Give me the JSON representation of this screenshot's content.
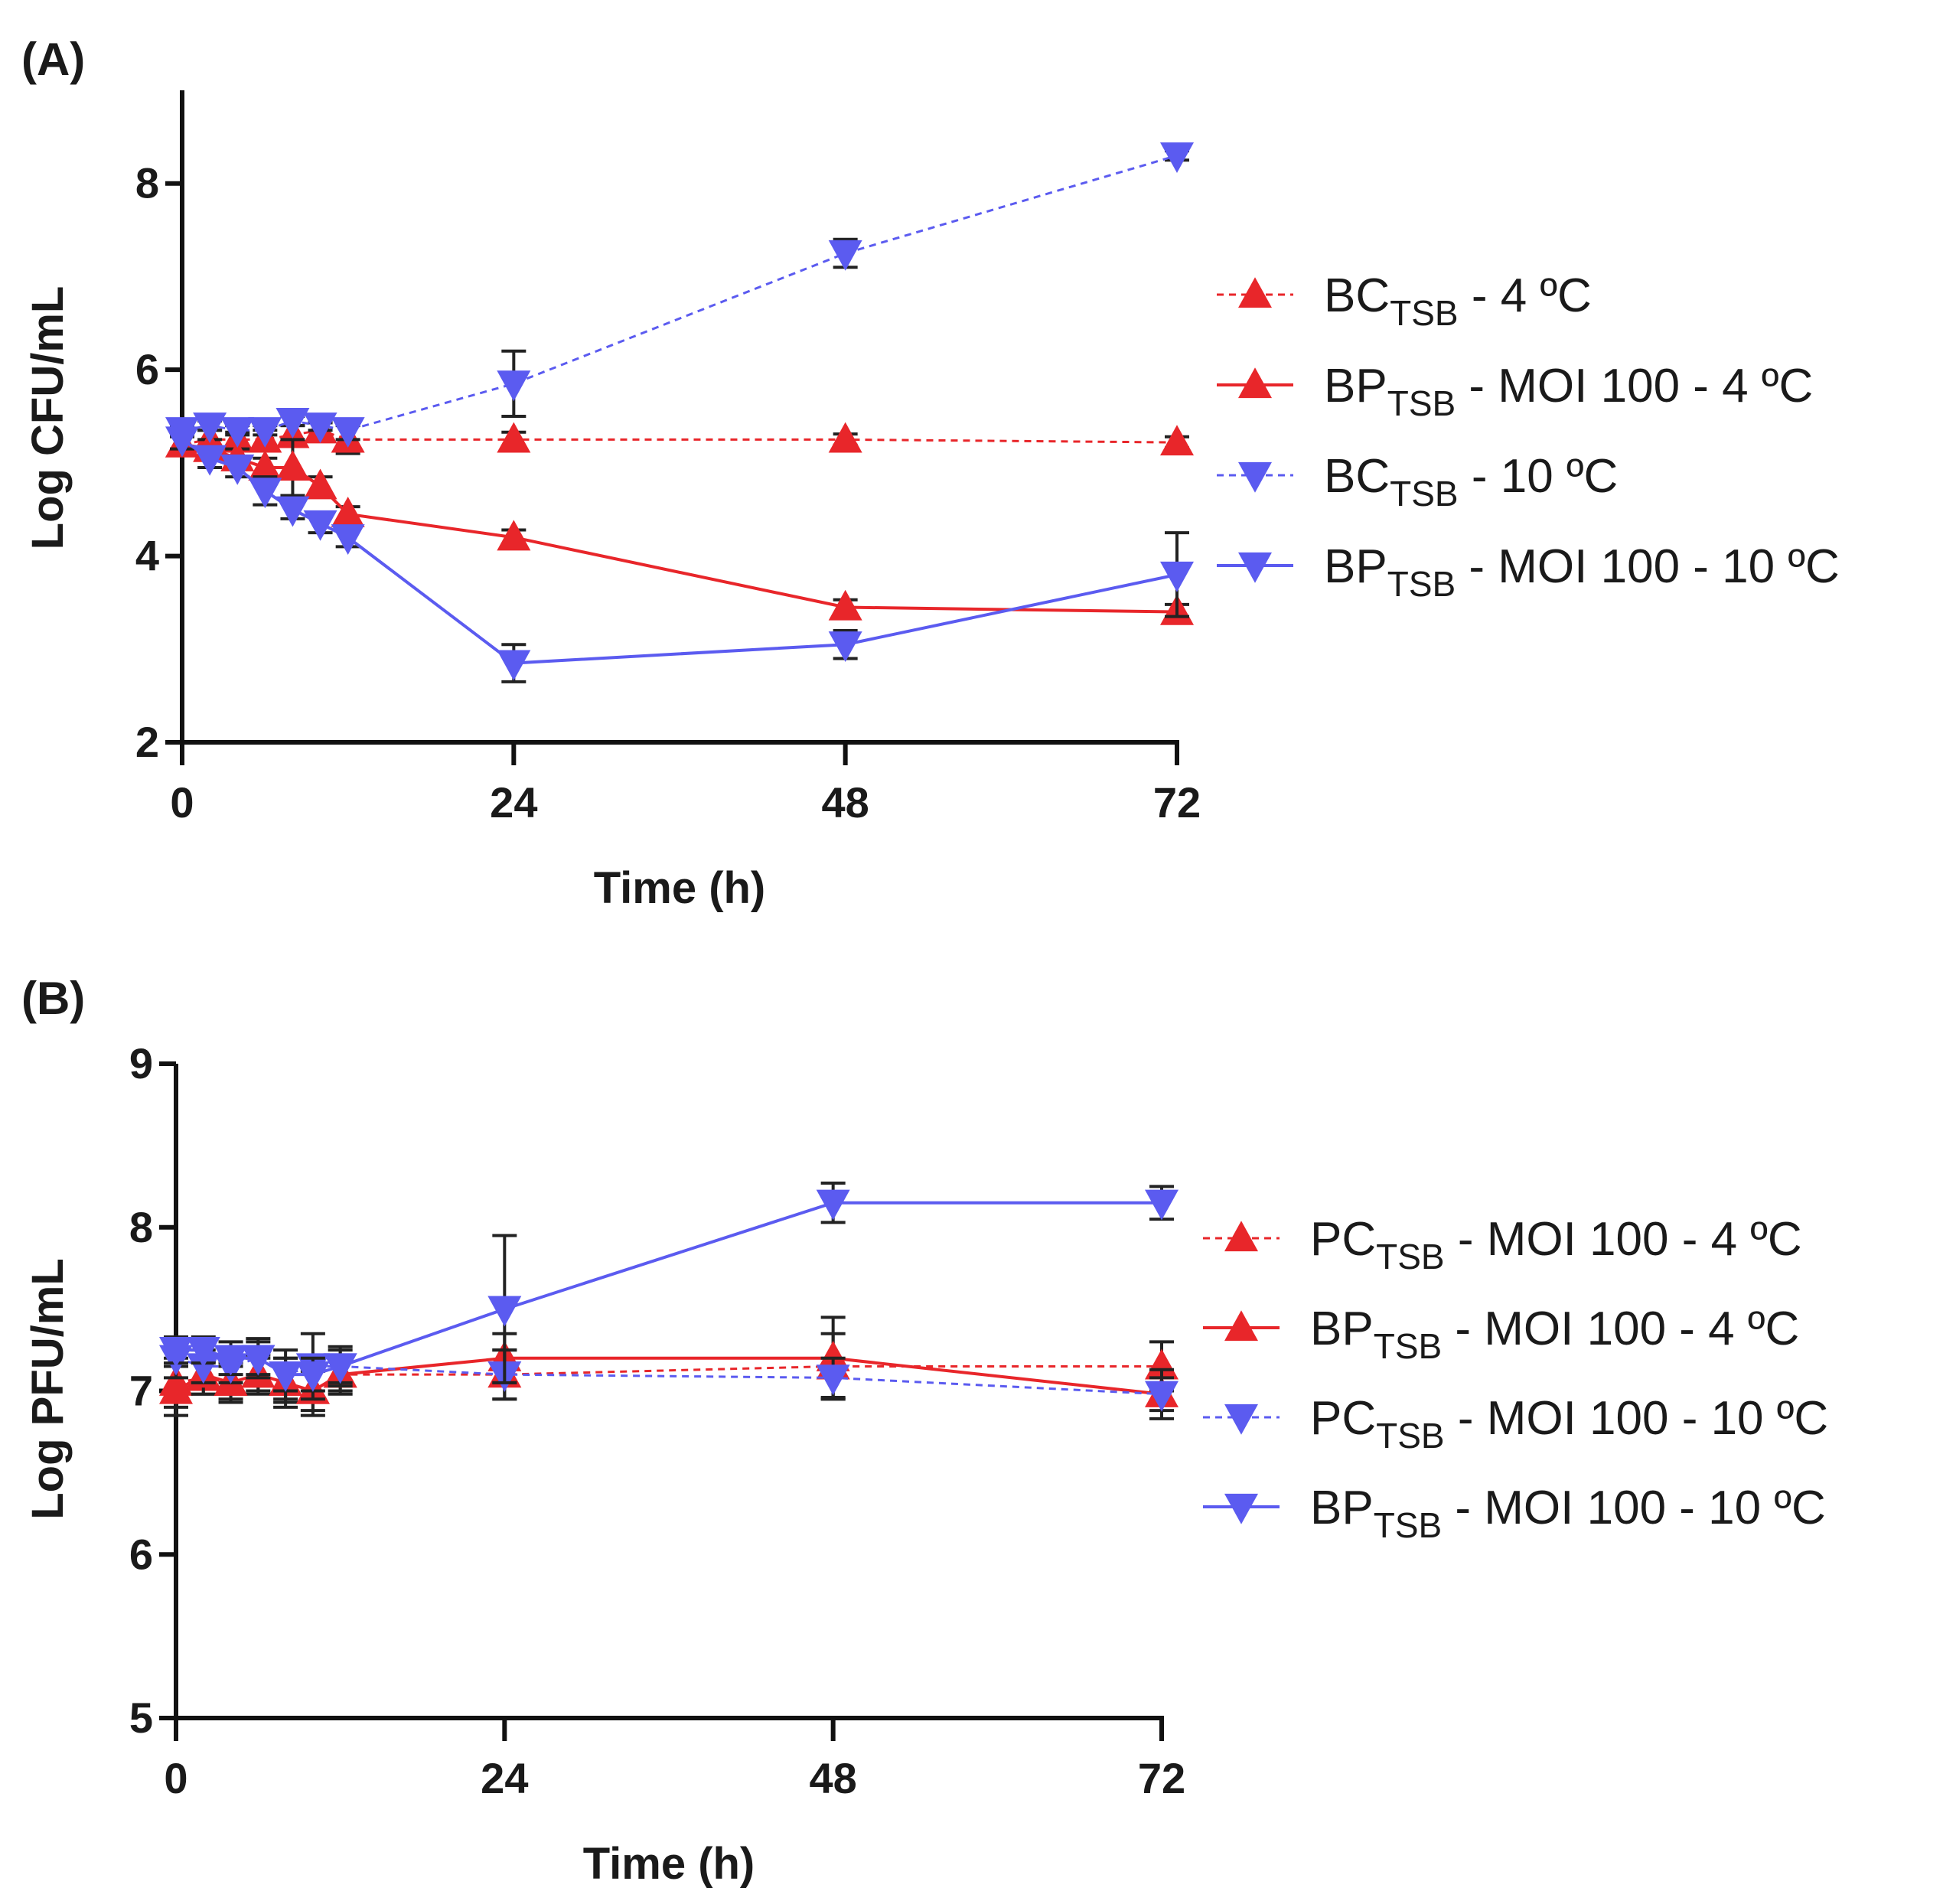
{
  "colors": {
    "red": "#e8262a",
    "blue": "#5b5bf0",
    "axis": "#111111",
    "errorbar": "#222222"
  },
  "chart_data": [
    {
      "panel_label": "(A)",
      "type": "line",
      "xlabel": "Time (h)",
      "ylabel": "Log CFU/mL",
      "xlim": [
        0,
        72
      ],
      "ylim": [
        2,
        9
      ],
      "xticks": [
        0,
        24,
        48,
        72
      ],
      "yticks": [
        2,
        4,
        6,
        8
      ],
      "series": [
        {
          "legend_main": "BC",
          "legend_sub": "TSB",
          "legend_tail": " - 4 ºC",
          "color": "red",
          "marker": "up",
          "dash": true,
          "points": [
            [
              0,
              5.2
            ],
            [
              2,
              5.25
            ],
            [
              4,
              5.25
            ],
            [
              6,
              5.25
            ],
            [
              8,
              5.3
            ],
            [
              10,
              5.35
            ],
            [
              12,
              5.25
            ],
            [
              24,
              5.25
            ],
            [
              48,
              5.25
            ],
            [
              72,
              5.22
            ]
          ],
          "err": [
            0.08,
            0.1,
            0.08,
            0.1,
            0.1,
            0.08,
            0.15,
            0.08,
            0.06,
            0.06
          ]
        },
        {
          "legend_main": "BP",
          "legend_sub": "TSB",
          "legend_tail": " - MOI 100 - 4 ºC",
          "color": "red",
          "marker": "up",
          "dash": false,
          "points": [
            [
              0,
              5.2
            ],
            [
              2,
              5.15
            ],
            [
              4,
              5.05
            ],
            [
              6,
              4.95
            ],
            [
              8,
              4.95
            ],
            [
              10,
              4.75
            ],
            [
              12,
              4.45
            ],
            [
              24,
              4.2
            ],
            [
              48,
              3.45
            ],
            [
              72,
              3.4
            ]
          ],
          "err": [
            0.1,
            0.1,
            0.1,
            0.1,
            0.3,
            0.1,
            0.08,
            0.08,
            0.08,
            0.08
          ]
        },
        {
          "legend_main": "BC",
          "legend_sub": "TSB",
          "legend_tail": " - 10 ºC",
          "color": "blue",
          "marker": "down",
          "dash": true,
          "points": [
            [
              0,
              5.35
            ],
            [
              2,
              5.4
            ],
            [
              4,
              5.35
            ],
            [
              6,
              5.35
            ],
            [
              8,
              5.45
            ],
            [
              10,
              5.4
            ],
            [
              12,
              5.35
            ],
            [
              24,
              5.85
            ],
            [
              48,
              7.25
            ],
            [
              72,
              8.3
            ]
          ],
          "err": [
            0.05,
            0.05,
            0.05,
            0.05,
            0.05,
            0.05,
            0.1,
            0.35,
            0.15,
            0.05
          ]
        },
        {
          "legend_main": "BP",
          "legend_sub": "TSB",
          "legend_tail": " - MOI 100 - 10 ºC",
          "color": "blue",
          "marker": "down",
          "dash": false,
          "points": [
            [
              0,
              5.25
            ],
            [
              2,
              5.05
            ],
            [
              4,
              4.95
            ],
            [
              6,
              4.7
            ],
            [
              8,
              4.5
            ],
            [
              10,
              4.35
            ],
            [
              12,
              4.2
            ],
            [
              24,
              2.85
            ],
            [
              48,
              3.05
            ],
            [
              72,
              3.8
            ]
          ],
          "err": [
            0.1,
            0.1,
            0.1,
            0.15,
            0.1,
            0.1,
            0.1,
            0.2,
            0.15,
            0.45
          ]
        }
      ]
    },
    {
      "panel_label": "(B)",
      "type": "line",
      "xlabel": "Time (h)",
      "ylabel": "Log PFU/mL",
      "xlim": [
        0,
        72
      ],
      "ylim": [
        5,
        9
      ],
      "xticks": [
        0,
        24,
        48,
        72
      ],
      "yticks": [
        5,
        6,
        7,
        8,
        9
      ],
      "series": [
        {
          "legend_main": "PC",
          "legend_sub": "TSB",
          "legend_tail": " - MOI 100 - 4 ºC",
          "color": "red",
          "marker": "up",
          "dash": true,
          "points": [
            [
              0,
              7.05
            ],
            [
              2,
              7.08
            ],
            [
              4,
              7.05
            ],
            [
              6,
              7.1
            ],
            [
              8,
              7.05
            ],
            [
              10,
              7.0
            ],
            [
              12,
              7.1
            ],
            [
              24,
              7.1
            ],
            [
              48,
              7.15
            ],
            [
              72,
              7.15
            ]
          ],
          "err": [
            0.15,
            0.1,
            0.12,
            0.1,
            0.15,
            0.15,
            0.1,
            0.15,
            0.2,
            0.15
          ]
        },
        {
          "legend_main": "BP",
          "legend_sub": "TSB",
          "legend_tail": " - MOI 100 - 4 ºC",
          "color": "red",
          "marker": "up",
          "dash": false,
          "points": [
            [
              0,
              7.0
            ],
            [
              2,
              7.1
            ],
            [
              4,
              7.05
            ],
            [
              6,
              7.1
            ],
            [
              8,
              7.05
            ],
            [
              10,
              7.0
            ],
            [
              12,
              7.1
            ],
            [
              24,
              7.2
            ],
            [
              48,
              7.2
            ],
            [
              72,
              6.98
            ]
          ],
          "err": [
            0.15,
            0.12,
            0.1,
            0.12,
            0.12,
            0.12,
            0.12,
            0.15,
            0.25,
            0.15
          ]
        },
        {
          "legend_main": "PC",
          "legend_sub": "TSB",
          "legend_tail": " - MOI 100 - 10 ºC",
          "color": "blue",
          "marker": "down",
          "dash": true,
          "points": [
            [
              0,
              7.2
            ],
            [
              2,
              7.15
            ],
            [
              4,
              7.15
            ],
            [
              6,
              7.2
            ],
            [
              8,
              7.1
            ],
            [
              10,
              7.15
            ],
            [
              12,
              7.15
            ],
            [
              24,
              7.1
            ],
            [
              48,
              7.08
            ],
            [
              72,
              6.98
            ]
          ],
          "err": [
            0.12,
            0.1,
            0.1,
            0.12,
            0.15,
            0.2,
            0.12,
            0.15,
            0.12,
            0.1
          ]
        },
        {
          "legend_main": "BP",
          "legend_sub": "TSB",
          "legend_tail": " - MOI 100 - 10 ºC",
          "color": "blue",
          "marker": "down",
          "dash": false,
          "points": [
            [
              0,
              7.25
            ],
            [
              2,
              7.25
            ],
            [
              4,
              7.2
            ],
            [
              6,
              7.2
            ],
            [
              8,
              7.1
            ],
            [
              10,
              7.1
            ],
            [
              12,
              7.15
            ],
            [
              24,
              7.5
            ],
            [
              48,
              8.15
            ],
            [
              72,
              8.15
            ]
          ],
          "err": [
            0.08,
            0.08,
            0.1,
            0.1,
            0.1,
            0.1,
            0.1,
            0.45,
            0.12,
            0.1
          ]
        }
      ]
    }
  ]
}
